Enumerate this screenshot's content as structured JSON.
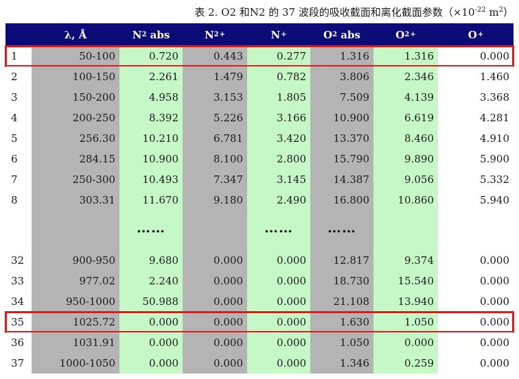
{
  "caption": {
    "prefix": "表 2. O2 和N2 的 37 波段的吸收截面和离化截面参数（×10",
    "exponent": "-22",
    "suffix": " m",
    "unit_exponent": "2",
    "close": "）"
  },
  "header": {
    "lambda": "λ, Å",
    "n2_abs": "N",
    "n2_abs_sub": "2",
    "n2_abs_rest": " abs",
    "n2_plus": "N",
    "n2_plus_sub": "2",
    "n2_plus_sup": "+",
    "n_plus": "N",
    "n_plus_sup": "+",
    "o2_abs": "O",
    "o2_abs_sub": "2",
    "o2_abs_rest": " abs",
    "o2_plus": "O",
    "o2_plus_sub": "2",
    "o2_plus_sup": "+",
    "o_plus": "O",
    "o_plus_sup": "+"
  },
  "rows_top": [
    {
      "idx": "1",
      "lambda": "50-100",
      "n2abs": "0.720",
      "n2p": "0.443",
      "np": "0.277",
      "o2abs": "1.316",
      "o2p": "1.316",
      "op": "0.000"
    },
    {
      "idx": "2",
      "lambda": "100-150",
      "n2abs": "2.261",
      "n2p": "1.479",
      "np": "0.782",
      "o2abs": "3.806",
      "o2p": "2.346",
      "op": "1.460"
    },
    {
      "idx": "3",
      "lambda": "150-200",
      "n2abs": "4.958",
      "n2p": "3.153",
      "np": "1.805",
      "o2abs": "7.509",
      "o2p": "4.139",
      "op": "3.368"
    },
    {
      "idx": "4",
      "lambda": "200-250",
      "n2abs": "8.392",
      "n2p": "5.226",
      "np": "3.166",
      "o2abs": "10.900",
      "o2p": "6.619",
      "op": "4.281"
    },
    {
      "idx": "5",
      "lambda": "256.30",
      "n2abs": "10.210",
      "n2p": "6.781",
      "np": "3.420",
      "o2abs": "13.370",
      "o2p": "8.460",
      "op": "4.910"
    },
    {
      "idx": "6",
      "lambda": "284.15",
      "n2abs": "10.900",
      "n2p": "8.100",
      "np": "2.800",
      "o2abs": "15.790",
      "o2p": "9.890",
      "op": "5.900"
    },
    {
      "idx": "7",
      "lambda": "250-300",
      "n2abs": "10.493",
      "n2p": "7.347",
      "np": "3.145",
      "o2abs": "14.387",
      "o2p": "9.056",
      "op": "5.332"
    },
    {
      "idx": "8",
      "lambda": "303.31",
      "n2abs": "11.670",
      "n2p": "9.180",
      "np": "2.490",
      "o2abs": "16.800",
      "o2p": "10.860",
      "op": "5.940"
    }
  ],
  "ellipsis": "……",
  "rows_bottom": [
    {
      "idx": "32",
      "lambda": "900-950",
      "n2abs": "9.680",
      "n2p": "0.000",
      "np": "0.000",
      "o2abs": "12.817",
      "o2p": "9.374",
      "op": "0.000"
    },
    {
      "idx": "33",
      "lambda": "977.02",
      "n2abs": "2.240",
      "n2p": "0.000",
      "np": "0.000",
      "o2abs": "18.730",
      "o2p": "15.540",
      "op": "0.000"
    },
    {
      "idx": "34",
      "lambda": "950-1000",
      "n2abs": "50.988",
      "n2p": "0.000",
      "np": "0.000",
      "o2abs": "21.108",
      "o2p": "13.940",
      "op": "0.000"
    },
    {
      "idx": "35",
      "lambda": "1025.72",
      "n2abs": "0.000",
      "n2p": "0.000",
      "np": "0.000",
      "o2abs": "1.630",
      "o2p": "1.050",
      "op": "0.000"
    },
    {
      "idx": "36",
      "lambda": "1031.91",
      "n2abs": "0.000",
      "n2p": "0.000",
      "np": "0.000",
      "o2abs": "1.050",
      "o2p": "0.000",
      "op": "0.000"
    },
    {
      "idx": "37",
      "lambda": "1000-1050",
      "n2abs": "0.000",
      "n2p": "0.000",
      "np": "0.000",
      "o2abs": "1.346",
      "o2p": "0.259",
      "op": "0.000"
    }
  ],
  "highlighted_rows": [
    "1",
    "35"
  ],
  "colors": {
    "header_bg": "#0c0c78",
    "gray_col": "#b4b4b4",
    "green_col": "#c6f7c6",
    "highlight_border": "#e01a1a"
  }
}
